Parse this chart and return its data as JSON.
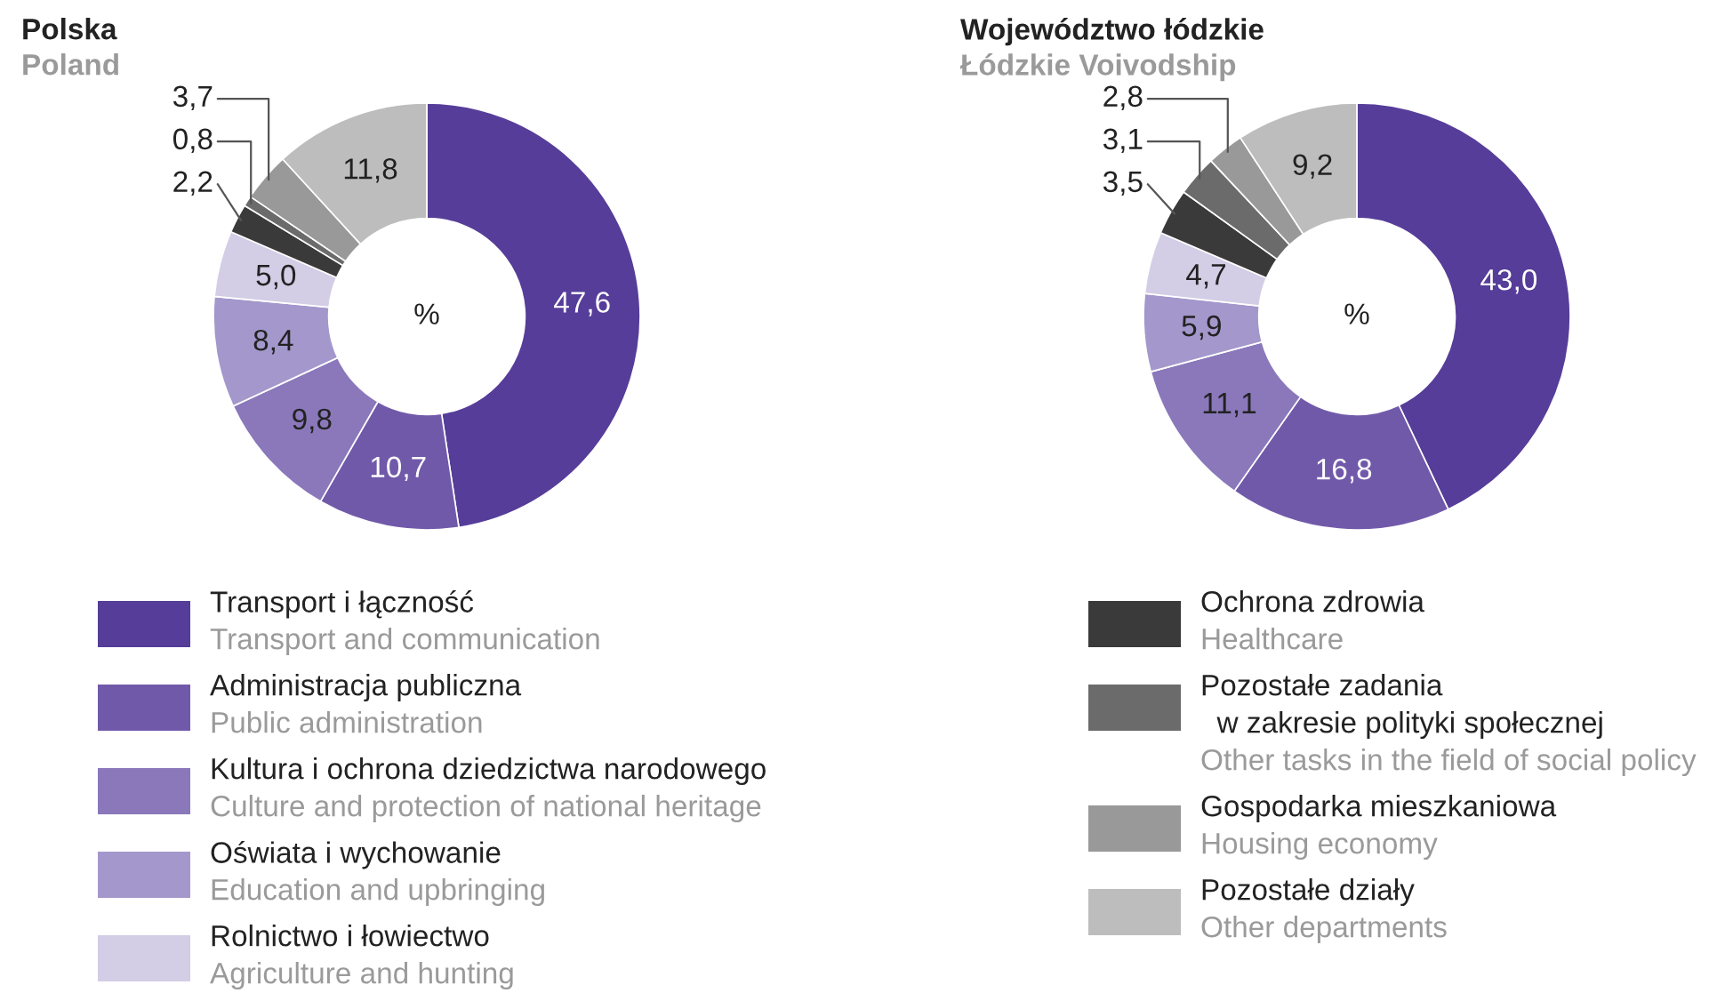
{
  "chart_data": [
    {
      "type": "donut",
      "title": "Polska",
      "subtitle": "Poland",
      "annotations": [
        "%"
      ],
      "legend": "bottom",
      "categories": [
        "Transport i łączność\nTransport and communication",
        "Administracja publiczna\nPublic administration",
        "Kultura i ochrona dziedzictwa narodowego\nCulture and protection of national heritage",
        "Oświata i wychowanie\nEducation and upbringing",
        "Rolnictwo i łowiectwo\nAgriculture and hunting",
        "Ochrona zdrowia\nHealthcare",
        "Pozostałe zadania\n  w zakresie polityki społecznej\nOther tasks in the field of social policy",
        "Gospodarka mieszkaniowa\nHousing economy",
        "Pozostałe działy\nOther departments"
      ],
      "values": [
        47.6,
        10.7,
        9.8,
        8.4,
        5.0,
        2.2,
        0.8,
        3.7,
        11.8
      ],
      "value_labels": [
        "47,6",
        "10,7",
        "9,8",
        "8,4",
        "5,0",
        "2,2",
        "0,8",
        "3,7",
        "11,8"
      ],
      "colors": [
        "#563d99",
        "#7159aa",
        "#8a78bb",
        "#a497cc",
        "#d3cde6",
        "#3a3a3a",
        "#6b6b6b",
        "#999999",
        "#bdbdbd"
      ]
    },
    {
      "type": "donut",
      "title": "Województwo łódzkie",
      "subtitle": "Łódzkie Voivodship",
      "annotations": [
        "%"
      ],
      "categories": [
        null,
        null,
        null,
        null,
        null,
        null,
        null,
        null,
        null
      ],
      "values": [
        43.0,
        16.8,
        11.1,
        5.9,
        4.7,
        3.5,
        3.1,
        2.8,
        9.2
      ],
      "value_labels": [
        "43,0",
        "16,8",
        "11,1",
        "5,9",
        "4,7",
        "3,5",
        "3,1",
        "2,8",
        "9,2"
      ],
      "colors": [
        "#563d99",
        "#7159aa",
        "#8a78bb",
        "#a497cc",
        "#d3cde6",
        "#3a3a3a",
        "#6b6b6b",
        "#999999",
        "#bdbdbd"
      ]
    }
  ]
}
